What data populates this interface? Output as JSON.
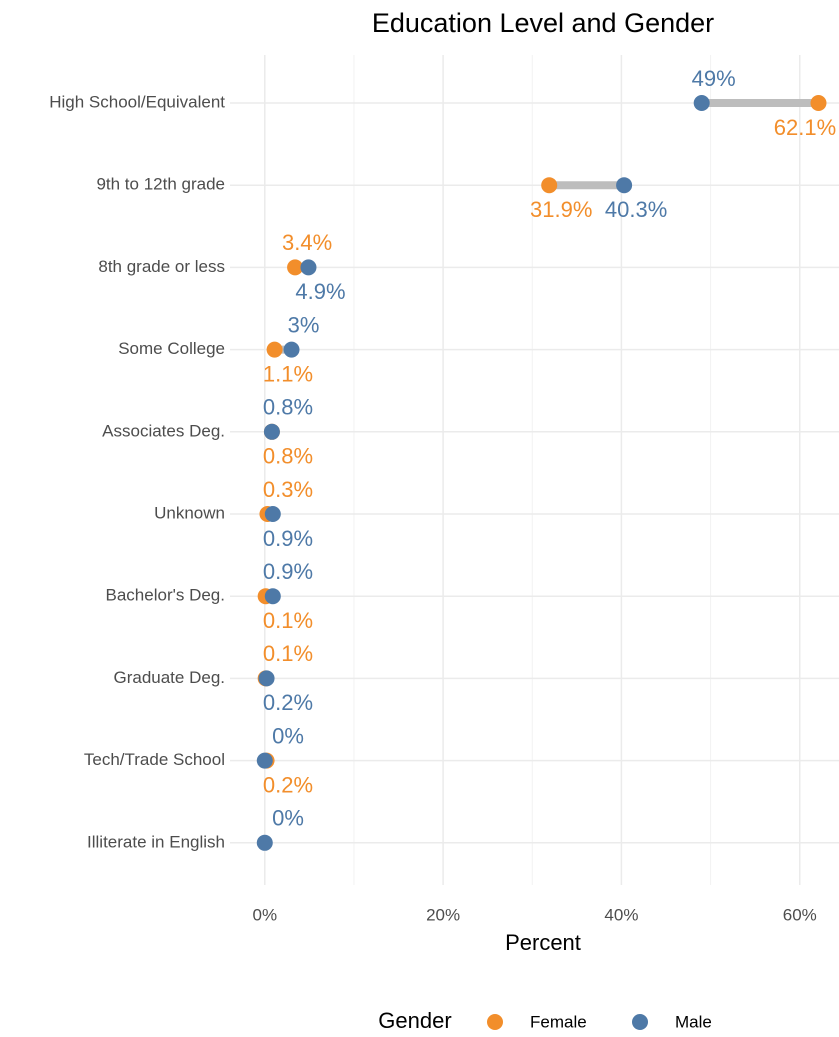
{
  "chart_data": {
    "type": "dumbbell",
    "title": "Education Level and Gender",
    "x_label": "Percent",
    "categories": [
      "High School/Equivalent",
      "9th to 12th grade",
      "8th grade or less",
      "Some College",
      "Associates Deg.",
      "Unknown",
      "Bachelor's Deg.",
      "Graduate Deg.",
      "Tech/Trade School",
      "Illiterate in English"
    ],
    "series": [
      {
        "name": "Female",
        "color": "#F28E2B",
        "values": [
          62.1,
          31.9,
          3.4,
          1.1,
          0.8,
          0.3,
          0.1,
          0.1,
          0.2,
          null
        ],
        "value_labels": [
          "62.1%",
          "31.9%",
          "3.4%",
          "1.1%",
          "0.8%",
          "0.3%",
          "0.1%",
          "0.1%",
          "0.2%",
          null
        ]
      },
      {
        "name": "Male",
        "color": "#4E79A7",
        "values": [
          49,
          40.3,
          4.9,
          3,
          0.8,
          0.9,
          0.9,
          0.2,
          0,
          0
        ],
        "value_labels": [
          "49%",
          "40.3%",
          "4.9%",
          "3%",
          "0.8%",
          "0.9%",
          "0.9%",
          "0.2%",
          "0%",
          "0%"
        ]
      }
    ],
    "xlim": [
      -3.9,
      64.4
    ],
    "xticks": [
      {
        "value": 0,
        "label": "0%"
      },
      {
        "value": 20,
        "label": "20%"
      },
      {
        "value": 40,
        "label": "40%"
      },
      {
        "value": 60,
        "label": "60%"
      }
    ],
    "segment_color": "#bdbdbd",
    "grid": true,
    "legend_title": "Gender",
    "legend": "bottom"
  }
}
